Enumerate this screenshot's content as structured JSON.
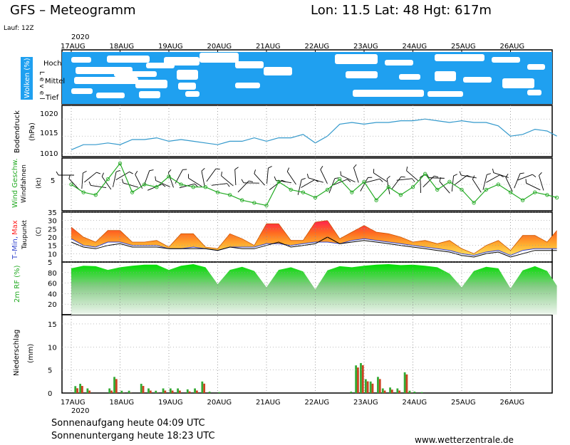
{
  "header": {
    "title": "GFS – Meteogramm",
    "location": "Lon: 11.5  Lat: 48  Hgt: 617m",
    "run": "Lauf: 12Z",
    "year": "2020"
  },
  "days": [
    "17AUG",
    "18AUG",
    "19AUG",
    "20AUG",
    "21AUG",
    "22AUG",
    "23AUG",
    "24AUG",
    "25AUG",
    "26AUG"
  ],
  "footer": {
    "sunrise": "Sonnenaufgang heute 04:09 UTC",
    "sunset": "Sonnenuntergang heute 18:23 UTC",
    "source": "www.wetterzentrale.de"
  },
  "colors": {
    "cloud_fill": "#1fa0f0",
    "pressure_line": "#3399cc",
    "wind_line": "#22aa22",
    "humidity_fill": "#22cc22",
    "precip_green": "#33aa33",
    "precip_red": "#cc4422",
    "tmax": "#ff6600",
    "tmin": "#3344cc"
  },
  "panels": {
    "clouds": {
      "label": "Wolken (%)",
      "levels": [
        "Hoch",
        "Mittel",
        "Tief"
      ],
      "level_word": "Level"
    },
    "pressure": {
      "label": "Bodendruck",
      "unit": "(hPa)",
      "ticks": [
        "1020",
        "1015",
        "1010"
      ]
    },
    "wind": {
      "label": "Wind Geschw.",
      "sublabel": "Windfahnen",
      "unit": "(kt)",
      "ticks": [
        "5"
      ]
    },
    "temp": {
      "label_min": "T–Min,",
      "label_max": "Max",
      "sublabel": "Taupunkt",
      "unit": "(C)",
      "ticks": [
        "35",
        "30",
        "25",
        "20",
        "15",
        "10",
        "5"
      ]
    },
    "rh": {
      "label": "2m RF (%)",
      "ticks": [
        "80",
        "60",
        "40",
        "20"
      ]
    },
    "precip": {
      "label": "Niederschlag",
      "unit": "(mm)",
      "ticks": [
        "15",
        "10",
        "5",
        "0"
      ]
    }
  },
  "chart_data": [
    {
      "type": "line",
      "panel": "pressure",
      "ylabel": "Bodendruck (hPa)",
      "ylim": [
        1009,
        1024
      ],
      "x_days": [
        0,
        0.25,
        0.5,
        0.75,
        1,
        1.25,
        1.5,
        1.75,
        2,
        2.25,
        2.5,
        2.75,
        3,
        3.25,
        3.5,
        3.75,
        4,
        4.25,
        4.5,
        4.75,
        5,
        5.25,
        5.5,
        5.75,
        6,
        6.25,
        6.5,
        6.75,
        7,
        7.25,
        7.5,
        7.75,
        8,
        8.25,
        8.5,
        8.75,
        9,
        9.25,
        9.5,
        9.75,
        9.95
      ],
      "series": [
        {
          "values": [
            1011,
            1012.5,
            1012.5,
            1013,
            1012.5,
            1014,
            1014,
            1014.5,
            1013.5,
            1014,
            1013.5,
            1013,
            1012.5,
            1013.5,
            1013.5,
            1014.5,
            1013.5,
            1014.5,
            1014.5,
            1015.5,
            1013,
            1015,
            1018.5,
            1019,
            1018.5,
            1019,
            1019,
            1019.5,
            1019.5,
            1020,
            1019.5,
            1019,
            1019.5,
            1019,
            1019,
            1018,
            1015,
            1015.5,
            1017,
            1016.5,
            1015
          ]
        }
      ]
    },
    {
      "type": "line",
      "panel": "wind",
      "ylabel": "Wind Geschw. (kt)",
      "ylim": [
        0,
        10
      ],
      "x_days": [
        0,
        0.25,
        0.5,
        0.75,
        1,
        1.25,
        1.5,
        1.75,
        2,
        2.25,
        2.5,
        2.75,
        3,
        3.25,
        3.5,
        3.75,
        4,
        4.25,
        4.5,
        4.75,
        5,
        5.25,
        5.5,
        5.75,
        6,
        6.25,
        6.5,
        6.75,
        7,
        7.25,
        7.5,
        7.75,
        8,
        8.25,
        8.5,
        8.75,
        9,
        9.25,
        9.5,
        9.75,
        9.95
      ],
      "series": [
        {
          "values": [
            5,
            3.5,
            3,
            6,
            9,
            3.5,
            5,
            4.5,
            6.5,
            5,
            4.5,
            4.5,
            3.5,
            3,
            2,
            1.5,
            1,
            5.5,
            4,
            3.5,
            2.5,
            4,
            6,
            3.5,
            5.5,
            2,
            4.5,
            3,
            4.5,
            7,
            4,
            5.5,
            4,
            1.5,
            4,
            5,
            3.5,
            2,
            3.5,
            3,
            2.5
          ]
        }
      ]
    },
    {
      "type": "area",
      "panel": "temperature",
      "ylabel": "T-Min, Max / Taupunkt (C)",
      "ylim": [
        5,
        35
      ],
      "x_days": [
        0,
        0.25,
        0.5,
        0.75,
        1,
        1.25,
        1.5,
        1.75,
        2,
        2.25,
        2.5,
        2.75,
        3,
        3.25,
        3.5,
        3.75,
        4,
        4.25,
        4.5,
        4.75,
        5,
        5.25,
        5.5,
        5.75,
        6,
        6.25,
        6.5,
        6.75,
        7,
        7.25,
        7.5,
        7.75,
        8,
        8.25,
        8.5,
        8.75,
        9,
        9.25,
        9.5,
        9.75,
        9.95
      ],
      "series": [
        {
          "name": "Max",
          "values": [
            26,
            20,
            17,
            24,
            24,
            17,
            17,
            18,
            14,
            22,
            22,
            14,
            13,
            22,
            19,
            15,
            28,
            28,
            18,
            18,
            29,
            30,
            19,
            23,
            27,
            23,
            22,
            20,
            17,
            18,
            16,
            18,
            13,
            10,
            15,
            18,
            12,
            21,
            21,
            17,
            24
          ]
        },
        {
          "name": "Min",
          "values": [
            19,
            15,
            14,
            17,
            17,
            15,
            15,
            15,
            13,
            13,
            14,
            13,
            12,
            14,
            14,
            14,
            16,
            16,
            15,
            16,
            17,
            17,
            16,
            18,
            19,
            18,
            17,
            16,
            15,
            14,
            13,
            12,
            10,
            9,
            11,
            12,
            9,
            12,
            13,
            13,
            13
          ]
        },
        {
          "name": "Taupunkt",
          "values": [
            17,
            14,
            13,
            15,
            16,
            14,
            14,
            14,
            13,
            13,
            13,
            13,
            12,
            14,
            13,
            13,
            15,
            17,
            14,
            15,
            16,
            20,
            16,
            17,
            18,
            17,
            16,
            15,
            14,
            13,
            12,
            11,
            9,
            8,
            10,
            11,
            8,
            10,
            12,
            12,
            12
          ]
        }
      ]
    },
    {
      "type": "area",
      "panel": "humidity",
      "ylabel": "2m RF (%)",
      "ylim": [
        0,
        100
      ],
      "x_days": [
        0,
        0.25,
        0.5,
        0.75,
        1,
        1.25,
        1.5,
        1.75,
        2,
        2.25,
        2.5,
        2.75,
        3,
        3.25,
        3.5,
        3.75,
        4,
        4.25,
        4.5,
        4.75,
        5,
        5.25,
        5.5,
        5.75,
        6,
        6.25,
        6.5,
        6.75,
        7,
        7.25,
        7.5,
        7.75,
        8,
        8.25,
        8.5,
        8.75,
        9,
        9.25,
        9.5,
        9.75,
        9.95
      ],
      "series": [
        {
          "values": [
            88,
            93,
            92,
            85,
            90,
            93,
            95,
            95,
            85,
            93,
            96,
            90,
            58,
            85,
            91,
            83,
            52,
            85,
            90,
            82,
            48,
            84,
            92,
            90,
            93,
            95,
            96,
            94,
            95,
            93,
            90,
            78,
            52,
            83,
            91,
            88,
            50,
            84,
            92,
            83,
            55
          ]
        }
      ]
    },
    {
      "type": "bar",
      "panel": "precipitation",
      "ylabel": "Niederschlag (mm)",
      "ylim": [
        0,
        17
      ],
      "x_days": [
        0.1,
        0.2,
        0.35,
        0.8,
        0.9,
        1.05,
        1.2,
        1.45,
        1.6,
        1.75,
        1.9,
        2.05,
        2.2,
        2.4,
        2.55,
        2.7,
        2.85,
        3.05,
        5.75,
        5.85,
        5.95,
        6.05,
        6.15,
        6.3,
        6.4,
        6.55,
        6.7,
        6.85,
        6.95,
        7.05,
        7.2
      ],
      "series": [
        {
          "values": [
            1.5,
            2,
            1,
            1,
            3.5,
            0.5,
            0.5,
            2,
            1,
            0.5,
            1,
            1,
            1,
            0.8,
            1,
            2.5,
            0.3,
            0.2,
            0.3,
            6,
            6.5,
            3,
            2.5,
            3.5,
            1,
            1.2,
            1,
            4.5,
            0.5,
            0.3,
            0.2
          ]
        }
      ]
    }
  ]
}
